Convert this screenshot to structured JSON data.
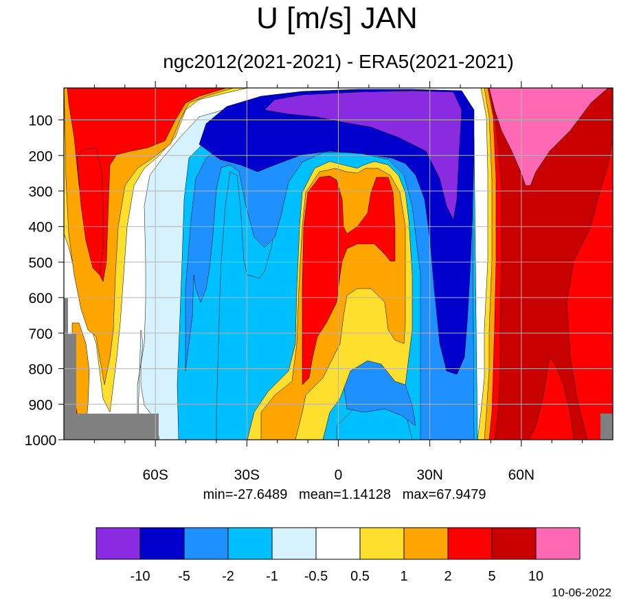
{
  "title": "U [m/s] JAN",
  "subtitle": "ngc2012(2021-2021) - ERA5(2021-2021)",
  "stats": {
    "min": "min=-27.6489",
    "mean": "mean=1.14128",
    "max": "max=67.9479"
  },
  "date": "10-06-2022",
  "chart_data": {
    "type": "heatmap",
    "title": "U [m/s] JAN",
    "subtitle": "ngc2012(2021-2021) - ERA5(2021-2021)",
    "x_axis": {
      "range": [
        -90,
        90
      ],
      "ticks": [
        -60,
        -30,
        0,
        30,
        60
      ],
      "tick_labels": [
        "60S",
        "30S",
        "0",
        "30N",
        "60N"
      ]
    },
    "y_axis": {
      "range": [
        1000,
        10
      ],
      "reversed": true,
      "ticks": [
        100,
        200,
        300,
        400,
        500,
        600,
        700,
        800,
        900,
        1000
      ],
      "tick_labels": [
        "100",
        "200",
        "300",
        "400",
        "500",
        "600",
        "700",
        "800",
        "900",
        "1000"
      ]
    },
    "grid": true,
    "missing_color": "#808080",
    "colorbar": {
      "levels": [
        "-10",
        "-5",
        "-2",
        "-1",
        "-0.5",
        "0.5",
        "1",
        "2",
        "5",
        "10"
      ],
      "colors": [
        "#8a2be2",
        "#0000cd",
        "#1e90ff",
        "#00bfff",
        "#d6f2fd",
        "#ffffff",
        "#ffdf2e",
        "#ffa500",
        "#ff0000",
        "#c80000",
        "#ff69b4"
      ]
    },
    "summary": {
      "min": -27.6489,
      "mean": 1.14128,
      "max": 67.9479
    }
  }
}
